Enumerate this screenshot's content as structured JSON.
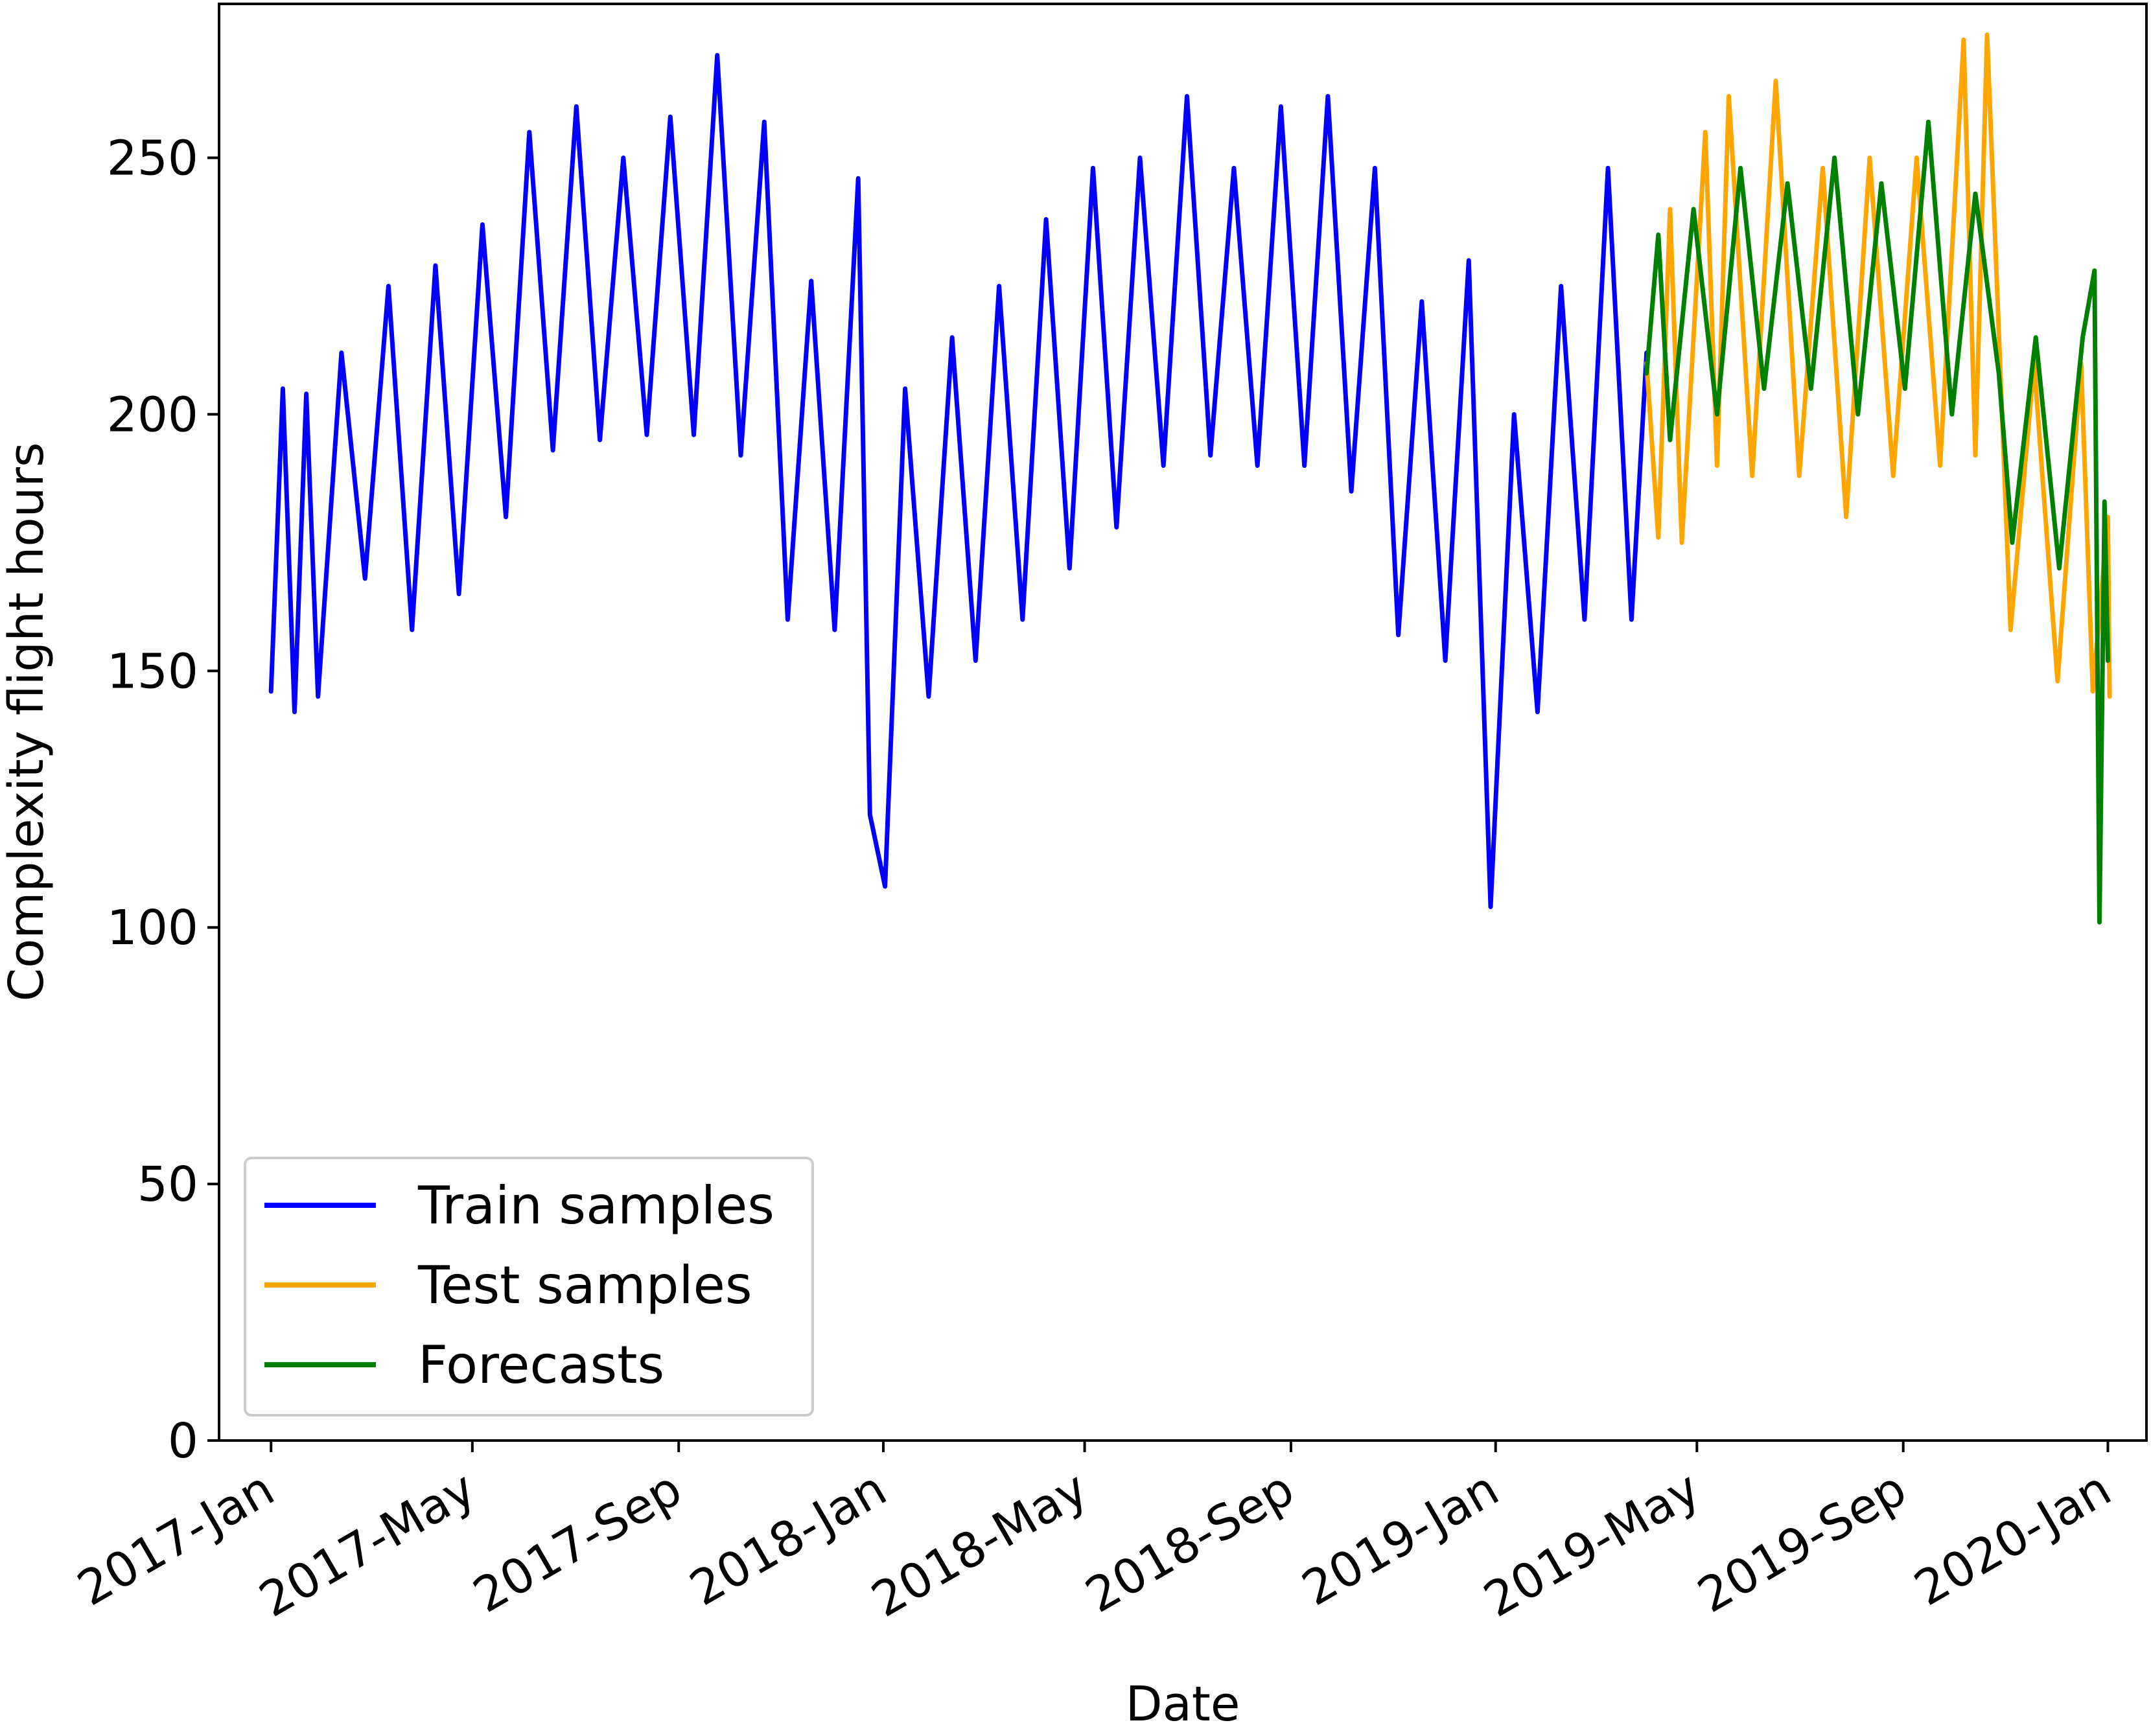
{
  "chart_data": {
    "type": "line",
    "xlabel": "Date",
    "ylabel": "Complexity flight hours",
    "ylim": [
      0,
      280
    ],
    "xlim": [
      "2016-12-01",
      "2020-01-24"
    ],
    "yticks": [
      {
        "value": 0,
        "label": "0"
      },
      {
        "value": 50,
        "label": "50"
      },
      {
        "value": 100,
        "label": "100"
      },
      {
        "value": 150,
        "label": "150"
      },
      {
        "value": 200,
        "label": "200"
      },
      {
        "value": 250,
        "label": "250"
      }
    ],
    "xticks": [
      {
        "value": "2017-01-01",
        "label": "2017-Jan"
      },
      {
        "value": "2017-05-01",
        "label": "2017-May"
      },
      {
        "value": "2017-09-01",
        "label": "2017-Sep"
      },
      {
        "value": "2018-01-01",
        "label": "2018-Jan"
      },
      {
        "value": "2018-05-01",
        "label": "2018-May"
      },
      {
        "value": "2018-09-01",
        "label": "2018-Sep"
      },
      {
        "value": "2019-01-01",
        "label": "2019-Jan"
      },
      {
        "value": "2019-05-01",
        "label": "2019-May"
      },
      {
        "value": "2019-09-01",
        "label": "2019-Sep"
      },
      {
        "value": "2020-01-01",
        "label": "2020-Jan"
      }
    ],
    "grid": false,
    "legend_position": "lower-left",
    "series": [
      {
        "name": "Train samples",
        "color": "#0000ff",
        "points": [
          [
            "2017-01-01",
            146
          ],
          [
            "2017-01-08",
            205
          ],
          [
            "2017-01-15",
            142
          ],
          [
            "2017-01-22",
            204
          ],
          [
            "2017-01-29",
            145
          ],
          [
            "2017-02-12",
            212
          ],
          [
            "2017-02-26",
            168
          ],
          [
            "2017-03-12",
            225
          ],
          [
            "2017-03-26",
            158
          ],
          [
            "2017-04-09",
            229
          ],
          [
            "2017-04-23",
            165
          ],
          [
            "2017-05-07",
            237
          ],
          [
            "2017-05-21",
            180
          ],
          [
            "2017-06-04",
            255
          ],
          [
            "2017-06-18",
            193
          ],
          [
            "2017-07-02",
            260
          ],
          [
            "2017-07-16",
            195
          ],
          [
            "2017-07-30",
            250
          ],
          [
            "2017-08-13",
            196
          ],
          [
            "2017-08-27",
            258
          ],
          [
            "2017-09-10",
            196
          ],
          [
            "2017-09-24",
            270
          ],
          [
            "2017-10-08",
            192
          ],
          [
            "2017-10-22",
            257
          ],
          [
            "2017-11-05",
            160
          ],
          [
            "2017-11-19",
            226
          ],
          [
            "2017-12-03",
            158
          ],
          [
            "2017-12-17",
            246
          ],
          [
            "2017-12-24",
            122
          ],
          [
            "2018-01-02",
            108
          ],
          [
            "2018-01-14",
            205
          ],
          [
            "2018-01-28",
            145
          ],
          [
            "2018-02-11",
            215
          ],
          [
            "2018-02-25",
            152
          ],
          [
            "2018-03-11",
            225
          ],
          [
            "2018-03-25",
            160
          ],
          [
            "2018-04-08",
            238
          ],
          [
            "2018-04-22",
            170
          ],
          [
            "2018-05-06",
            248
          ],
          [
            "2018-05-20",
            178
          ],
          [
            "2018-06-03",
            250
          ],
          [
            "2018-06-17",
            190
          ],
          [
            "2018-07-01",
            262
          ],
          [
            "2018-07-15",
            192
          ],
          [
            "2018-07-29",
            248
          ],
          [
            "2018-08-12",
            190
          ],
          [
            "2018-08-26",
            260
          ],
          [
            "2018-09-09",
            190
          ],
          [
            "2018-09-23",
            262
          ],
          [
            "2018-10-07",
            185
          ],
          [
            "2018-10-21",
            248
          ],
          [
            "2018-11-04",
            157
          ],
          [
            "2018-11-18",
            222
          ],
          [
            "2018-12-02",
            152
          ],
          [
            "2018-12-16",
            230
          ],
          [
            "2018-12-29",
            104
          ],
          [
            "2019-01-12",
            200
          ],
          [
            "2019-01-26",
            142
          ],
          [
            "2019-02-09",
            225
          ],
          [
            "2019-02-23",
            160
          ],
          [
            "2019-03-09",
            248
          ],
          [
            "2019-03-23",
            160
          ],
          [
            "2019-04-01",
            212
          ]
        ]
      },
      {
        "name": "Test samples",
        "color": "#ffa500",
        "points": [
          [
            "2019-04-01",
            210
          ],
          [
            "2019-04-08",
            176
          ],
          [
            "2019-04-15",
            240
          ],
          [
            "2019-04-22",
            175
          ],
          [
            "2019-05-06",
            255
          ],
          [
            "2019-05-13",
            190
          ],
          [
            "2019-05-20",
            262
          ],
          [
            "2019-06-03",
            188
          ],
          [
            "2019-06-17",
            265
          ],
          [
            "2019-07-01",
            188
          ],
          [
            "2019-07-15",
            248
          ],
          [
            "2019-07-29",
            180
          ],
          [
            "2019-08-12",
            250
          ],
          [
            "2019-08-26",
            188
          ],
          [
            "2019-09-09",
            250
          ],
          [
            "2019-09-23",
            190
          ],
          [
            "2019-10-07",
            273
          ],
          [
            "2019-10-14",
            192
          ],
          [
            "2019-10-21",
            274
          ],
          [
            "2019-11-04",
            158
          ],
          [
            "2019-11-18",
            210
          ],
          [
            "2019-12-02",
            148
          ],
          [
            "2019-12-16",
            210
          ],
          [
            "2019-12-23",
            146
          ],
          [
            "2020-01-01",
            180
          ],
          [
            "2020-01-02",
            145
          ]
        ]
      },
      {
        "name": "Forecasts",
        "color": "#008000",
        "points": [
          [
            "2019-04-01",
            208
          ],
          [
            "2019-04-08",
            235
          ],
          [
            "2019-04-15",
            195
          ],
          [
            "2019-04-29",
            240
          ],
          [
            "2019-05-13",
            200
          ],
          [
            "2019-05-27",
            248
          ],
          [
            "2019-06-10",
            205
          ],
          [
            "2019-06-24",
            245
          ],
          [
            "2019-07-08",
            205
          ],
          [
            "2019-07-22",
            250
          ],
          [
            "2019-08-05",
            200
          ],
          [
            "2019-08-19",
            245
          ],
          [
            "2019-09-02",
            205
          ],
          [
            "2019-09-16",
            257
          ],
          [
            "2019-09-30",
            200
          ],
          [
            "2019-10-14",
            243
          ],
          [
            "2019-10-28",
            208
          ],
          [
            "2019-11-05",
            175
          ],
          [
            "2019-11-19",
            215
          ],
          [
            "2019-12-03",
            170
          ],
          [
            "2019-12-17",
            215
          ],
          [
            "2019-12-24",
            228
          ],
          [
            "2019-12-27",
            101
          ],
          [
            "2019-12-30",
            183
          ],
          [
            "2020-01-01",
            152
          ]
        ]
      }
    ]
  }
}
